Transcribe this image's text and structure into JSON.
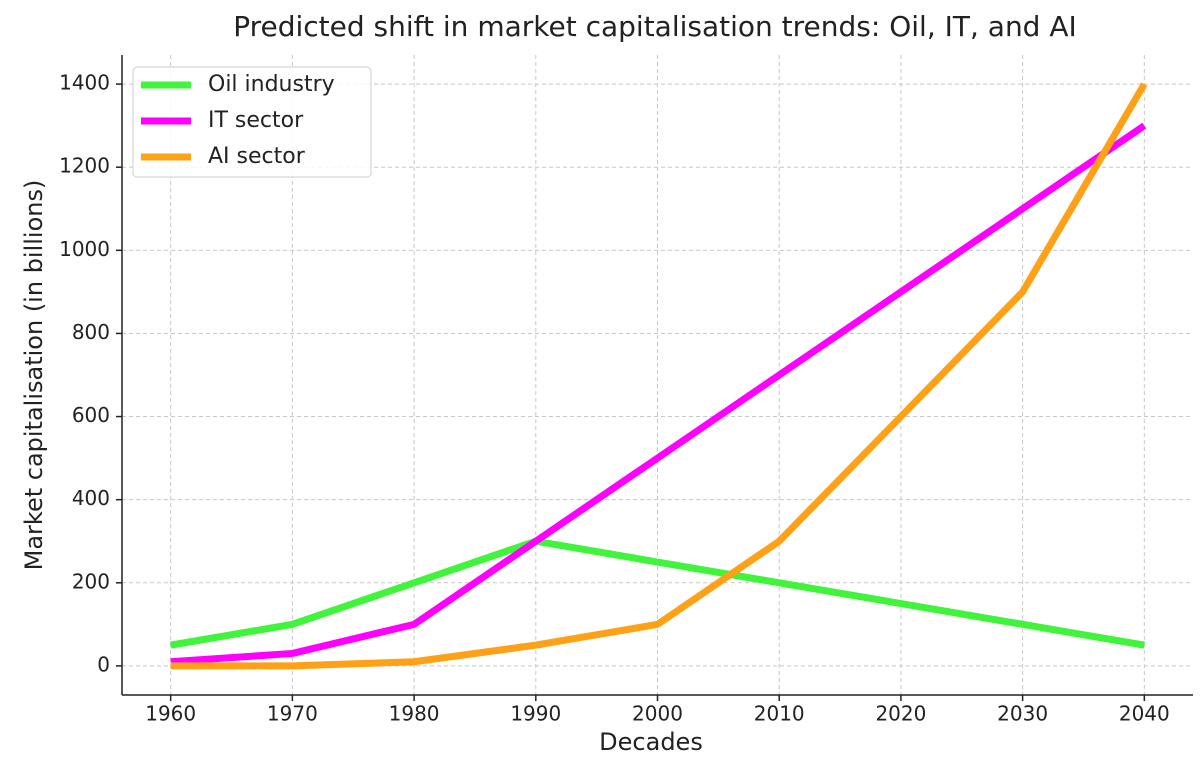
{
  "chart_data": {
    "type": "line",
    "title": "Predicted shift in market capitalisation trends: Oil, IT, and AI",
    "xlabel": "Decades",
    "ylabel": "Market capitalisation (in billions)",
    "x": [
      1960,
      1970,
      1980,
      1990,
      2000,
      2010,
      2020,
      2030,
      2040
    ],
    "series": [
      {
        "name": "Oil industry",
        "color": "#3ff43a",
        "values": [
          50,
          100,
          200,
          300,
          250,
          200,
          150,
          100,
          50
        ]
      },
      {
        "name": "IT sector",
        "color": "#ff00ff",
        "values": [
          10,
          30,
          100,
          300,
          500,
          700,
          900,
          1100,
          1300
        ]
      },
      {
        "name": "AI sector",
        "color": "#ffa116",
        "values": [
          0,
          0,
          10,
          50,
          100,
          300,
          600,
          900,
          1400
        ]
      }
    ],
    "xlim": [
      1956,
      2044
    ],
    "ylim": [
      -70,
      1470
    ],
    "xticks": [
      1960,
      1970,
      1980,
      1990,
      2000,
      2010,
      2020,
      2030,
      2040
    ],
    "yticks": [
      0,
      200,
      400,
      600,
      800,
      1000,
      1200,
      1400
    ],
    "grid": true,
    "legend": "upper-left"
  }
}
